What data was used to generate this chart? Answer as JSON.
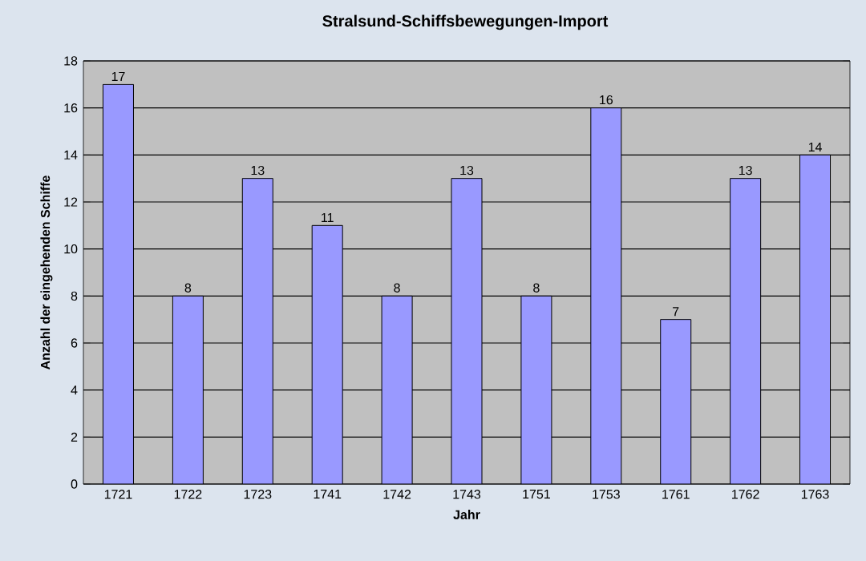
{
  "chart_data": {
    "type": "bar",
    "title": "Stralsund-Schiffsbewegungen-Import",
    "xlabel": "Jahr",
    "ylabel": "Anzahl der eingehenden Schiffe",
    "categories": [
      "1721",
      "1722",
      "1723",
      "1741",
      "1742",
      "1743",
      "1751",
      "1753",
      "1761",
      "1762",
      "1763"
    ],
    "values": [
      17,
      8,
      13,
      11,
      8,
      13,
      8,
      16,
      7,
      13,
      14
    ],
    "color": "#9999ff",
    "ylim": [
      0,
      18
    ],
    "yticks": [
      0,
      2,
      4,
      6,
      8,
      10,
      12,
      14,
      16,
      18
    ],
    "grid": "y",
    "data_labels": true
  }
}
